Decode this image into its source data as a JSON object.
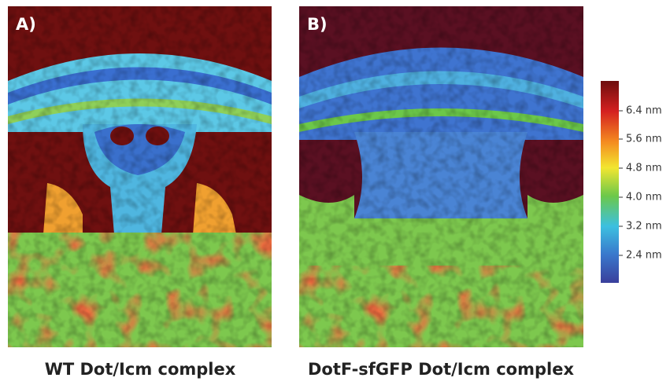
{
  "panels": [
    {
      "label": "A)",
      "caption": "WT Dot/Icm complex"
    },
    {
      "label": "B)",
      "caption": "DotF-sfGFP Dot/Icm complex"
    }
  ],
  "colorbar": {
    "ticks": [
      "6.4 nm",
      "5.6 nm",
      "4.8 nm",
      "4.0 nm",
      "3.2 nm",
      "2.4 nm"
    ]
  }
}
